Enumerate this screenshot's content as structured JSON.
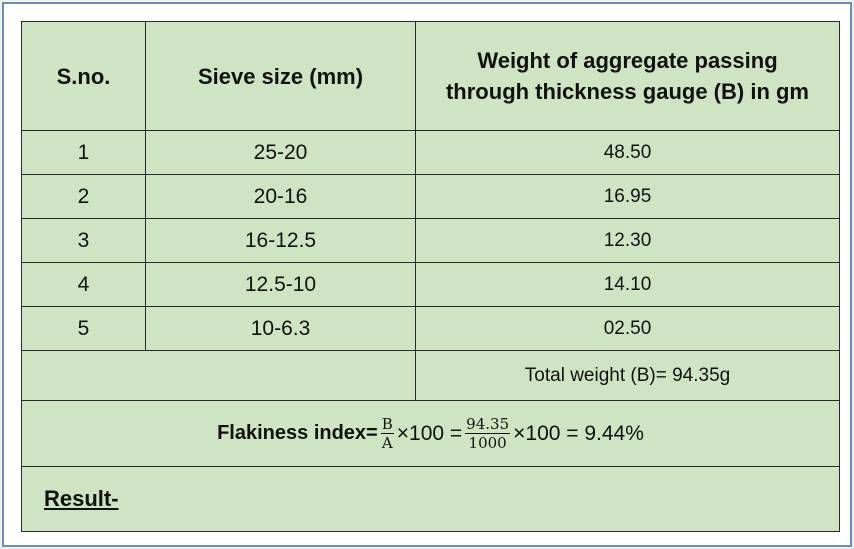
{
  "headers": {
    "sno": "S.no.",
    "sieve": "Sieve size (mm)",
    "weight_line1": "Weight of aggregate passing",
    "weight_line2": "through thickness gauge (B) in gm"
  },
  "rows": [
    {
      "sno": "1",
      "sieve": "25-20",
      "weight": "48.50"
    },
    {
      "sno": "2",
      "sieve": "20-16",
      "weight": "16.95"
    },
    {
      "sno": "3",
      "sieve": "16-12.5",
      "weight": "12.30"
    },
    {
      "sno": "4",
      "sieve": "12.5-10",
      "weight": "14.10"
    },
    {
      "sno": "5",
      "sieve": "10-6.3",
      "weight": "02.50"
    }
  ],
  "total": "Total weight (B)= 94.35g",
  "formula": {
    "label": "Flakiness index=",
    "frac1_num": "B",
    "frac1_den": "A",
    "times1": "×100 =",
    "frac2_num": "94.35",
    "frac2_den": "1000",
    "times2": "×100 = 9.44%"
  },
  "result_label": "Result-"
}
